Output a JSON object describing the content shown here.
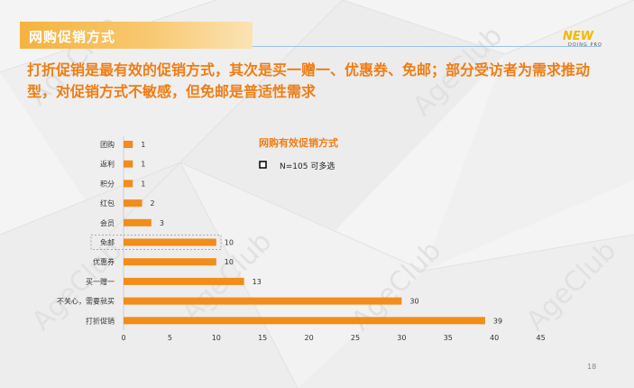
{
  "slide": {
    "header_title": "网购促销方式",
    "logo_main": "NEW",
    "logo_sub": "DOING PRO",
    "headline": "打折促销是最有效的促销方式，其次是买一赠一、优惠券、免邮；部分受访者为需求推动型，对促销方式不敏感，但免邮是普适性需求",
    "page_number": "18",
    "watermark": "AgeClub"
  },
  "colors": {
    "accent": "#ef7d14",
    "bar": "#f28c1a",
    "header": "#f6b23e",
    "rule": "#9dc3e6"
  },
  "chart_data": {
    "type": "bar",
    "orientation": "horizontal",
    "title": "网购有效促销方式",
    "legend": "N=105 可多选",
    "legend_position": "right",
    "categories": [
      "团购",
      "返利",
      "积分",
      "红包",
      "会员",
      "免邮",
      "优惠券",
      "买一赠一",
      "不关心，需要就买",
      "打折促销"
    ],
    "values": [
      1,
      1,
      1,
      2,
      3,
      10,
      10,
      13,
      30,
      39
    ],
    "highlight_category": "免邮",
    "xlim": [
      0,
      45
    ],
    "x_ticks": [
      "0",
      "5",
      "10",
      "15",
      "20",
      "25",
      "30",
      "35",
      "40",
      "45"
    ],
    "grid": false,
    "xlabel": "",
    "ylabel": ""
  }
}
